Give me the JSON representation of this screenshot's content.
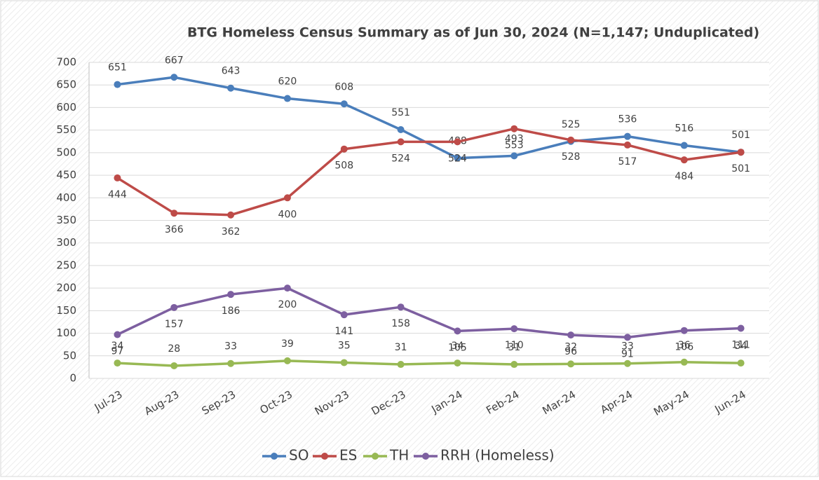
{
  "chart_data": {
    "type": "line",
    "title": "BTG Homeless Census Summary as of Jun 30, 2024 (N=1,147; Unduplicated)",
    "categories": [
      "Jul-23",
      "Aug-23",
      "Sep-23",
      "Oct-23",
      "Nov-23",
      "Dec-23",
      "Jan-24",
      "Feb-24",
      "Mar-24",
      "Apr-24",
      "May-24",
      "Jun-24"
    ],
    "series": [
      {
        "name": "SO",
        "color": "#4a7ebb",
        "values": [
          651,
          667,
          643,
          620,
          608,
          551,
          488,
          493,
          525,
          536,
          516,
          501
        ]
      },
      {
        "name": "ES",
        "color": "#be4b48",
        "values": [
          444,
          366,
          362,
          400,
          508,
          524,
          524,
          553,
          528,
          517,
          484,
          501
        ]
      },
      {
        "name": "TH",
        "color": "#98b954",
        "values": [
          34,
          28,
          33,
          39,
          35,
          31,
          34,
          31,
          32,
          33,
          36,
          34
        ]
      },
      {
        "name": "RRH (Homeless)",
        "color": "#7d5fa0",
        "values": [
          97,
          157,
          186,
          200,
          141,
          158,
          105,
          110,
          96,
          91,
          106,
          111
        ]
      }
    ],
    "ylim": [
      0,
      700
    ],
    "yticks": [
      0,
      50,
      100,
      150,
      200,
      250,
      300,
      350,
      400,
      450,
      500,
      550,
      600,
      650,
      700
    ],
    "grid": true,
    "legend": "bottom"
  }
}
